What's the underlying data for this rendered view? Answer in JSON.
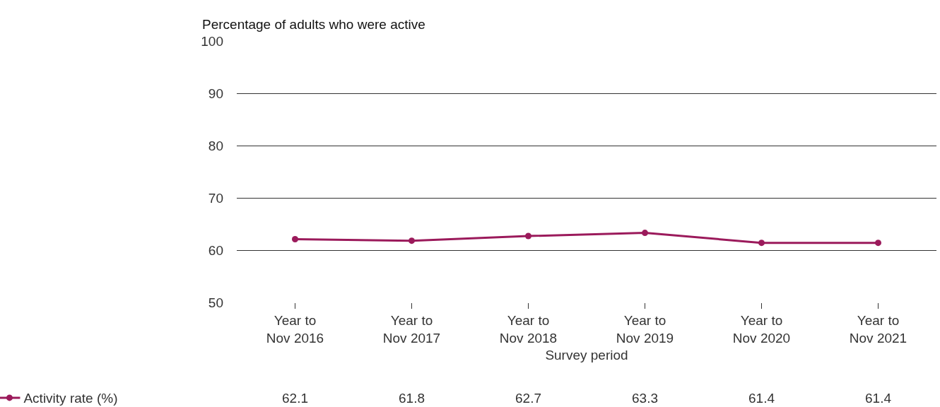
{
  "chart_data": {
    "type": "line",
    "ylabel": "Percentage of adults who were active",
    "xlabel": "Survey period",
    "categories": [
      "Year to\nNov 2016",
      "Year to\nNov 2017",
      "Year to\nNov 2018",
      "Year to\nNov 2019",
      "Year to\nNov 2020",
      "Year to\nNov 2021"
    ],
    "series": [
      {
        "name": "Activity rate (%)",
        "color": "#9b1a5b",
        "values": [
          62.1,
          61.8,
          62.7,
          63.3,
          61.4,
          61.4
        ]
      }
    ],
    "ylim": [
      50,
      100
    ],
    "yticks": [
      50,
      60,
      70,
      80,
      90,
      100
    ],
    "grid": "y",
    "legend": "bottom left",
    "marker": "circle",
    "line_style": "solid",
    "data_labels": true
  }
}
